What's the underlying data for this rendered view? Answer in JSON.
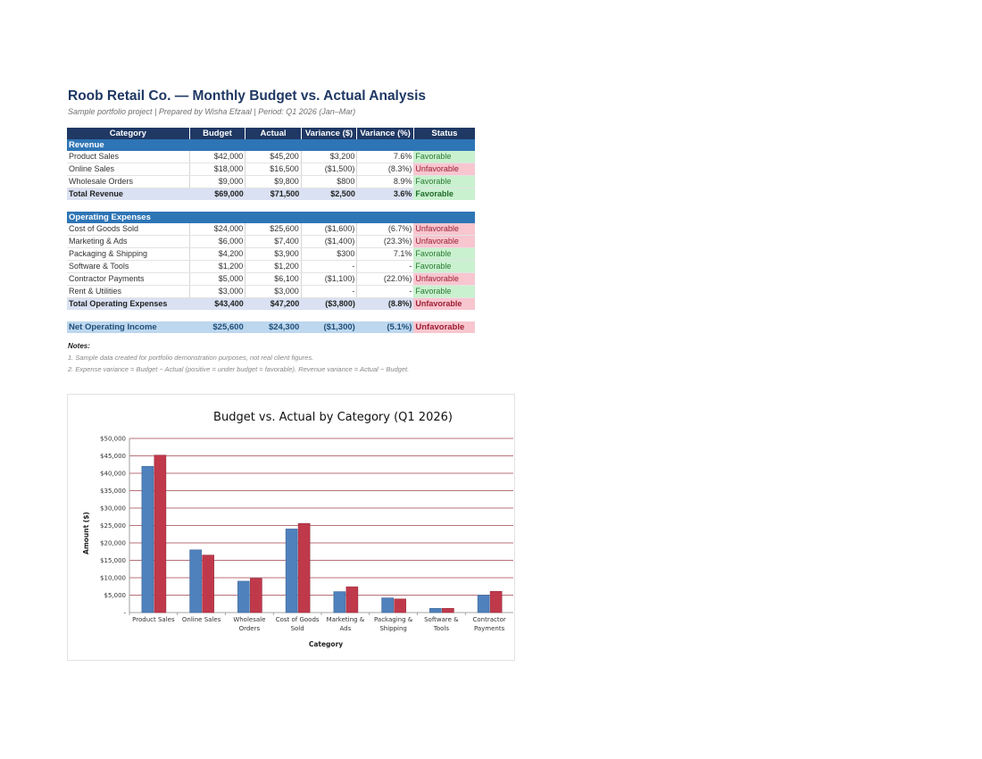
{
  "report": {
    "title": "Roob Retail Co. — Monthly Budget vs. Actual Analysis",
    "subtitle": "Sample portfolio project | Prepared by Wisha Efzaal | Period: Q1 2026 (Jan–Mar)"
  },
  "table": {
    "headers": [
      "Category",
      "Budget",
      "Actual",
      "Variance ($)",
      "Variance (%)",
      "Status"
    ],
    "revenue": {
      "section_label": "Revenue",
      "rows": [
        {
          "category": "Product Sales",
          "budget": "$42,000",
          "actual": "$45,200",
          "variance": "$3,200",
          "variance_pct": "7.6%",
          "status": "Favorable",
          "fav": true
        },
        {
          "category": "Online Sales",
          "budget": "$18,000",
          "actual": "$16,500",
          "variance": "($1,500)",
          "variance_pct": "(8.3%)",
          "status": "Unfavorable",
          "fav": false
        },
        {
          "category": "Wholesale Orders",
          "budget": "$9,000",
          "actual": "$9,800",
          "variance": "$800",
          "variance_pct": "8.9%",
          "status": "Favorable",
          "fav": true
        }
      ],
      "total": {
        "category": "Total Revenue",
        "budget": "$69,000",
        "actual": "$71,500",
        "variance": "$2,500",
        "variance_pct": "3.6%",
        "status": "Favorable",
        "fav": true
      }
    },
    "expenses": {
      "section_label": "Operating Expenses",
      "rows": [
        {
          "category": "Cost of Goods Sold",
          "budget": "$24,000",
          "actual": "$25,600",
          "variance": "($1,600)",
          "variance_pct": "(6.7%)",
          "status": "Unfavorable",
          "fav": false
        },
        {
          "category": "Marketing & Ads",
          "budget": "$6,000",
          "actual": "$7,400",
          "variance": "($1,400)",
          "variance_pct": "(23.3%)",
          "status": "Unfavorable",
          "fav": false
        },
        {
          "category": "Packaging & Shipping",
          "budget": "$4,200",
          "actual": "$3,900",
          "variance": "$300",
          "variance_pct": "7.1%",
          "status": "Favorable",
          "fav": true
        },
        {
          "category": "Software & Tools",
          "budget": "$1,200",
          "actual": "$1,200",
          "variance": "-",
          "variance_pct": "-",
          "status": "Favorable",
          "fav": true
        },
        {
          "category": "Contractor Payments",
          "budget": "$5,000",
          "actual": "$6,100",
          "variance": "($1,100)",
          "variance_pct": "(22.0%)",
          "status": "Unfavorable",
          "fav": false
        },
        {
          "category": "Rent & Utilities",
          "budget": "$3,000",
          "actual": "$3,000",
          "variance": "-",
          "variance_pct": "-",
          "status": "Favorable",
          "fav": true
        }
      ],
      "total": {
        "category": "Total Operating Expenses",
        "budget": "$43,400",
        "actual": "$47,200",
        "variance": "($3,800)",
        "variance_pct": "(8.8%)",
        "status": "Unfavorable",
        "fav": false
      }
    },
    "net": {
      "category": "Net Operating Income",
      "budget": "$25,600",
      "actual": "$24,300",
      "variance": "($1,300)",
      "variance_pct": "(5.1%)",
      "status": "Unfavorable",
      "fav": false
    }
  },
  "notes": {
    "title": "Notes:",
    "items": [
      "1. Sample data created for portfolio demonstration purposes, not real client figures.",
      "2. Expense variance = Budget − Actual (positive = under budget = favorable). Revenue variance = Actual − Budget."
    ]
  },
  "colors": {
    "budget_bar": "#4f81bd",
    "actual_bar": "#c0394b",
    "gridline": "#a0434b",
    "header_bg": "#1f3864",
    "section_bg": "#2e75b6"
  },
  "chart_data": {
    "type": "bar",
    "title": "Budget vs. Actual by Category (Q1 2026)",
    "xlabel": "Category",
    "ylabel": "Amount ($)",
    "ylim": [
      0,
      50000
    ],
    "yticks": [
      "-",
      "$5,000",
      "$10,000",
      "$15,000",
      "$20,000",
      "$25,000",
      "$30,000",
      "$35,000",
      "$40,000",
      "$45,000",
      "$50,000"
    ],
    "categories": [
      [
        "Product Sales"
      ],
      [
        "Online Sales"
      ],
      [
        "Wholesale",
        "Orders"
      ],
      [
        "Cost of Goods",
        "Sold"
      ],
      [
        "Marketing &",
        "Ads"
      ],
      [
        "Packaging &",
        "Shipping"
      ],
      [
        "Software &",
        "Tools"
      ],
      [
        "Contractor",
        "Payments"
      ]
    ],
    "series": [
      {
        "values": [
          42000,
          18000,
          9000,
          24000,
          6000,
          4200,
          1200,
          5000
        ]
      },
      {
        "values": [
          45200,
          16500,
          9800,
          25600,
          7400,
          3900,
          1200,
          6100
        ]
      }
    ],
    "grid": true,
    "legend": "none"
  }
}
